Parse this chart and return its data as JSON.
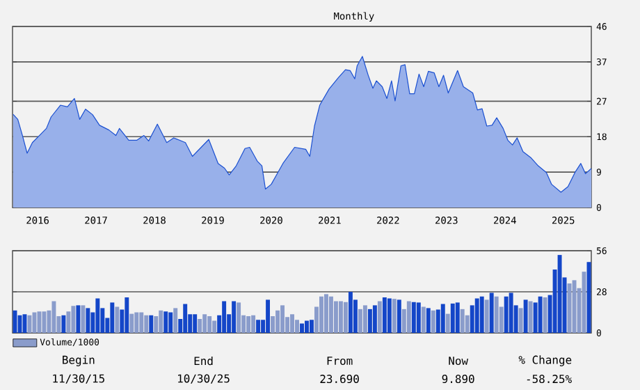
{
  "chart_data": [
    {
      "type": "area",
      "subtitle": "Monthly",
      "grid": "y",
      "xlim": [
        2015.92,
        2025.83
      ],
      "ylim": [
        0,
        46
      ],
      "yticks": [
        0,
        9,
        18,
        27,
        37,
        46
      ],
      "xticks": [
        {
          "value": 2016.35,
          "label": "2016"
        },
        {
          "value": 2017.35,
          "label": "2017"
        },
        {
          "value": 2018.35,
          "label": "2018"
        },
        {
          "value": 2019.35,
          "label": "2019"
        },
        {
          "value": 2020.35,
          "label": "2020"
        },
        {
          "value": 2021.35,
          "label": "2021"
        },
        {
          "value": 2022.35,
          "label": "2022"
        },
        {
          "value": 2023.35,
          "label": "2023"
        },
        {
          "value": 2024.35,
          "label": "2024"
        },
        {
          "value": 2025.35,
          "label": "2025"
        }
      ],
      "series": [
        {
          "color": "#1a4fd0",
          "x": [
            2015.93,
            2016.01,
            2016.09,
            2016.17,
            2016.26,
            2016.38,
            2016.5,
            2016.58,
            2016.74,
            2016.86,
            2016.98,
            2017.07,
            2017.17,
            2017.29,
            2017.41,
            2017.57,
            2017.69,
            2017.75,
            2017.91,
            2018.05,
            2018.17,
            2018.25,
            2018.4,
            2018.56,
            2018.68,
            2018.88,
            2019.0,
            2019.28,
            2019.44,
            2019.55,
            2019.63,
            2019.75,
            2019.9,
            2019.98,
            2020.11,
            2020.19,
            2020.25,
            2020.35,
            2020.55,
            2020.75,
            2020.94,
            2021.01,
            2021.09,
            2021.18,
            2021.34,
            2021.5,
            2021.62,
            2021.7,
            2021.78,
            2021.82,
            2021.91,
            2022.01,
            2022.09,
            2022.15,
            2022.25,
            2022.33,
            2022.41,
            2022.47,
            2022.57,
            2022.64,
            2022.72,
            2022.8,
            2022.88,
            2022.96,
            2023.04,
            2023.14,
            2023.22,
            2023.3,
            2023.38,
            2023.54,
            2023.64,
            2023.8,
            2023.88,
            2023.96,
            2024.04,
            2024.13,
            2024.21,
            2024.32,
            2024.4,
            2024.48,
            2024.56,
            2024.66,
            2024.8,
            2024.92,
            2025.06,
            2025.15,
            2025.31,
            2025.43,
            2025.55,
            2025.65,
            2025.73,
            2025.83
          ],
          "values": [
            23.7,
            22.4,
            18.3,
            13.8,
            16.5,
            18.3,
            20.1,
            23.0,
            26.0,
            25.6,
            27.7,
            22.4,
            25.0,
            23.6,
            20.9,
            19.7,
            18.3,
            20.1,
            17.1,
            17.1,
            18.3,
            16.9,
            21.2,
            16.5,
            17.7,
            16.5,
            13.0,
            17.3,
            11.2,
            10.0,
            8.3,
            10.6,
            15.0,
            15.3,
            11.8,
            10.6,
            4.7,
            5.9,
            11.2,
            15.3,
            14.8,
            13.0,
            20.7,
            26.0,
            30.1,
            33.0,
            35.0,
            34.8,
            32.7,
            36.0,
            38.4,
            33.6,
            30.3,
            32.2,
            30.7,
            27.7,
            32.2,
            27.1,
            36.0,
            36.3,
            28.9,
            28.9,
            33.9,
            30.7,
            34.6,
            34.2,
            30.7,
            33.6,
            29.1,
            34.8,
            30.7,
            29.1,
            24.8,
            25.1,
            20.7,
            20.9,
            22.8,
            20.1,
            17.1,
            15.9,
            17.7,
            14.2,
            12.6,
            10.6,
            8.9,
            5.9,
            3.9,
            5.3,
            8.9,
            11.2,
            8.6,
            9.9
          ]
        }
      ]
    },
    {
      "type": "bar",
      "grid": "y",
      "ylim": [
        0,
        56
      ],
      "yticks": [
        0,
        28,
        56
      ],
      "legend": "bottom left",
      "categories": [
        null,
        null,
        null,
        null,
        null,
        null,
        null,
        null,
        null,
        null,
        null,
        null,
        null,
        null,
        null,
        null,
        null,
        null,
        null,
        null,
        null,
        null,
        null,
        null,
        null,
        null,
        null,
        null,
        null,
        null,
        null,
        null,
        null,
        null,
        null,
        null,
        null,
        null,
        null,
        null,
        null,
        null,
        null,
        null,
        null,
        null,
        null,
        null,
        null,
        null,
        null,
        null,
        null,
        null,
        null,
        null,
        null,
        null,
        null,
        null,
        null,
        null,
        null,
        null,
        null,
        null,
        null,
        null,
        null,
        null,
        null,
        null,
        null,
        null,
        null,
        null,
        null,
        null,
        null,
        null,
        null,
        null,
        null,
        null,
        null,
        null,
        null,
        null,
        null,
        null,
        null,
        null,
        null,
        null,
        null,
        null,
        null,
        null,
        null,
        null,
        null,
        null,
        null,
        null,
        null,
        null,
        null,
        null,
        null,
        null,
        null,
        null,
        null,
        null,
        null,
        null,
        null,
        null,
        null
      ],
      "annotations": [
        "Begin",
        "End",
        "From",
        "Now",
        "% Change",
        "11/30/15",
        "10/30/25",
        "23.690",
        "9.890",
        "-58.25%"
      ],
      "series": [
        {
          "name": "Volume/1000",
          "color": "#8a9ccb",
          "values": [
            15.3,
            12,
            12.7,
            12,
            14,
            14.6,
            14.6,
            15.3,
            21.6,
            11.4,
            12,
            14.6,
            18.4,
            18.8,
            18.8,
            16.9,
            14,
            23.5,
            16.9,
            10.2,
            20.7,
            17.8,
            15.9,
            24.2,
            13,
            14,
            14,
            12,
            12,
            11.4,
            15.3,
            14.6,
            14,
            16.9,
            9.5,
            19.7,
            12.7,
            12.7,
            9.5,
            12.7,
            11.4,
            8.3,
            12,
            21.6,
            12.7,
            21.6,
            20.7,
            12,
            11.4,
            12,
            8.9,
            8.9,
            22.6,
            11.4,
            15.3,
            18.8,
            10.8,
            12.7,
            8.9,
            6.4,
            8.3,
            8.9,
            17.8,
            24.8,
            26.4,
            24.8,
            21.6,
            21.6,
            21,
            28,
            22.6,
            16.2,
            18.8,
            16.2,
            18.8,
            21.6,
            24.2,
            23.5,
            23.2,
            22.6,
            16.2,
            21.6,
            21,
            20.7,
            17.8,
            16.9,
            15.3,
            15.9,
            19.7,
            13,
            20,
            20.7,
            16.2,
            12,
            18.8,
            23.5,
            24.8,
            22.6,
            27.3,
            24.8,
            17.8,
            24.8,
            27.3,
            18.8,
            16.9,
            22.6,
            21.6,
            20.7,
            24.8,
            24.2,
            25.8,
            43.2,
            53.1,
            37.8,
            33.7,
            35.9,
            30.5,
            41.7,
            48.3
          ],
          "colors": [
            "#1446c8",
            "#1446c8",
            "#1446c8",
            "#8a9ccb",
            "#8a9ccb",
            "#8a9ccb",
            "#8a9ccb",
            "#8a9ccb",
            "#8a9ccb",
            "#8a9ccb",
            "#1446c8",
            "#8a9ccb",
            "#8a9ccb",
            "#1446c8",
            "#8a9ccb",
            "#1446c8",
            "#1446c8",
            "#1446c8",
            "#1446c8",
            "#1446c8",
            "#1446c8",
            "#8a9ccb",
            "#1446c8",
            "#1446c8",
            "#8a9ccb",
            "#8a9ccb",
            "#8a9ccb",
            "#8a9ccb",
            "#1446c8",
            "#8a9ccb",
            "#8a9ccb",
            "#1446c8",
            "#1446c8",
            "#8a9ccb",
            "#1446c8",
            "#1446c8",
            "#1446c8",
            "#1446c8",
            "#8a9ccb",
            "#8a9ccb",
            "#8a9ccb",
            "#8a9ccb",
            "#1446c8",
            "#1446c8",
            "#1446c8",
            "#1446c8",
            "#8a9ccb",
            "#8a9ccb",
            "#8a9ccb",
            "#8a9ccb",
            "#1446c8",
            "#1446c8",
            "#1446c8",
            "#8a9ccb",
            "#8a9ccb",
            "#8a9ccb",
            "#8a9ccb",
            "#8a9ccb",
            "#8a9ccb",
            "#1446c8",
            "#1446c8",
            "#1446c8",
            "#8a9ccb",
            "#8a9ccb",
            "#8a9ccb",
            "#8a9ccb",
            "#8a9ccb",
            "#8a9ccb",
            "#8a9ccb",
            "#1446c8",
            "#1446c8",
            "#8a9ccb",
            "#8a9ccb",
            "#1446c8",
            "#1446c8",
            "#8a9ccb",
            "#1446c8",
            "#1446c8",
            "#8a9ccb",
            "#1446c8",
            "#8a9ccb",
            "#8a9ccb",
            "#1446c8",
            "#1446c8",
            "#8a9ccb",
            "#1446c8",
            "#8a9ccb",
            "#1446c8",
            "#1446c8",
            "#8a9ccb",
            "#1446c8",
            "#1446c8",
            "#8a9ccb",
            "#8a9ccb",
            "#1446c8",
            "#1446c8",
            "#1446c8",
            "#8a9ccb",
            "#1446c8",
            "#8a9ccb",
            "#8a9ccb",
            "#1446c8",
            "#1446c8",
            "#1446c8",
            "#8a9ccb",
            "#1446c8",
            "#8a9ccb",
            "#1446c8",
            "#1446c8",
            "#8a9ccb",
            "#1446c8",
            "#1446c8",
            "#1446c8",
            "#1446c8",
            "#8a9ccb",
            "#8a9ccb",
            "#8a9ccb",
            "#8a9ccb",
            "#1446c8"
          ]
        }
      ]
    }
  ]
}
